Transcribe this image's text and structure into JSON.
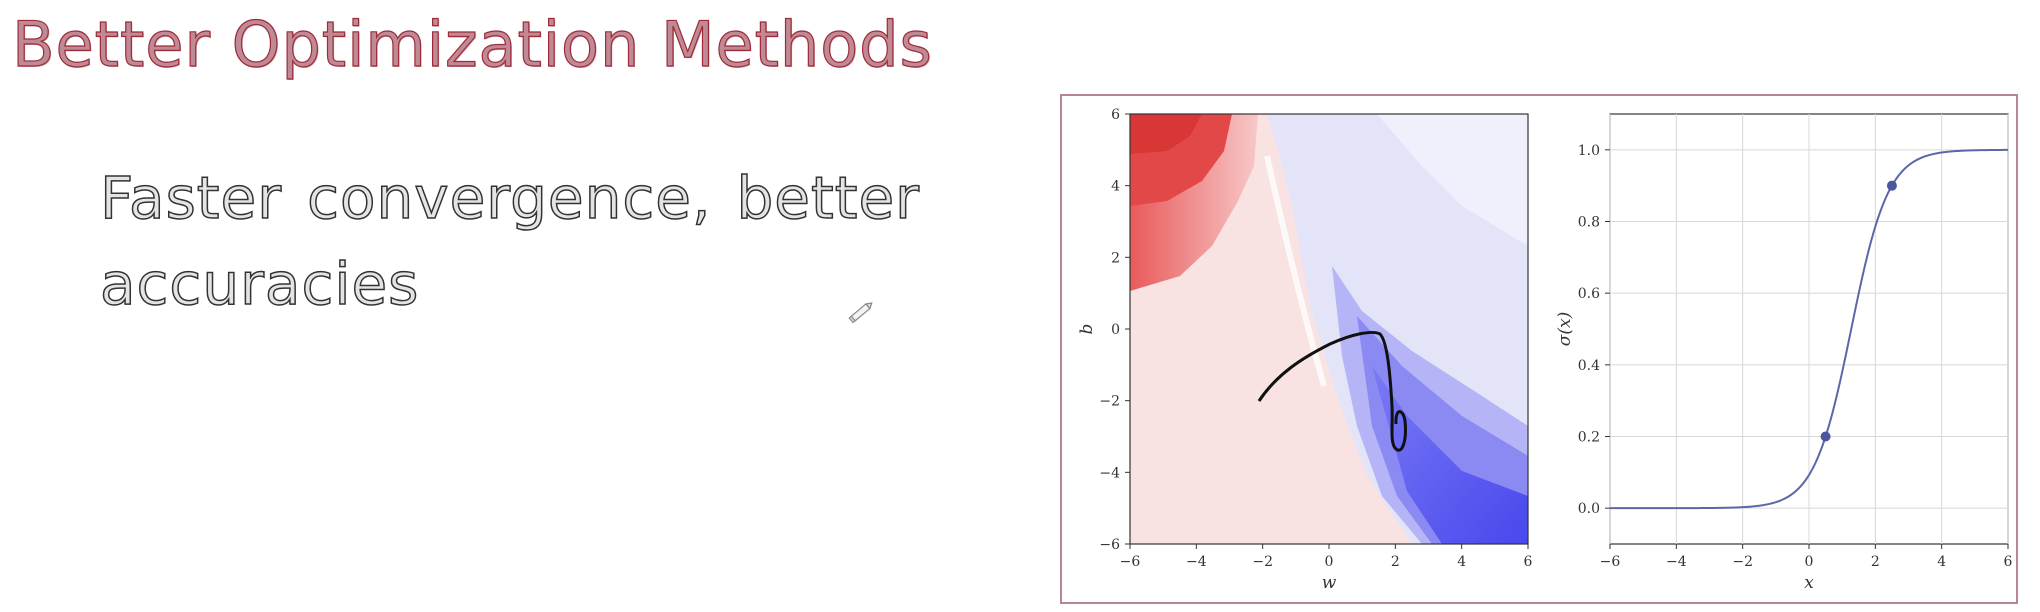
{
  "slide": {
    "title": "Better Optimization Methods",
    "bullet": "Faster convergence, better accuracies"
  },
  "icons": {
    "annotation_cursor": "pencil-icon"
  },
  "colors": {
    "title": "#9e2a3a",
    "frame": "#b88690",
    "sigmoid_line": "#5a68a8",
    "contour_pos": "#e04848",
    "contour_neg": "#4444ee"
  },
  "contour_plot": {
    "xlabel": "w",
    "ylabel": "b",
    "xlim": [
      -6,
      6
    ],
    "ylim": [
      -6,
      6
    ],
    "xticks": [
      "−6",
      "−4",
      "−2",
      "0",
      "2",
      "4",
      "6"
    ],
    "yticks": [
      "6",
      "4",
      "2",
      "0",
      "−2",
      "−4",
      "−6"
    ]
  },
  "chart_data": {
    "type": "line",
    "xlabel": "x",
    "ylabel": "σ(x)",
    "xlim": [
      -6,
      6
    ],
    "ylim": [
      -0.1,
      1.1
    ],
    "grid": true,
    "xticks": [
      "−6",
      "−4",
      "−2",
      "0",
      "2",
      "4",
      "6"
    ],
    "yticks": [
      "1.0",
      "0.8",
      "0.6",
      "0.4",
      "0.2",
      "0.0"
    ],
    "points": [
      {
        "x": 0.5,
        "y": 0.2
      },
      {
        "x": 2.5,
        "y": 0.9
      }
    ]
  }
}
